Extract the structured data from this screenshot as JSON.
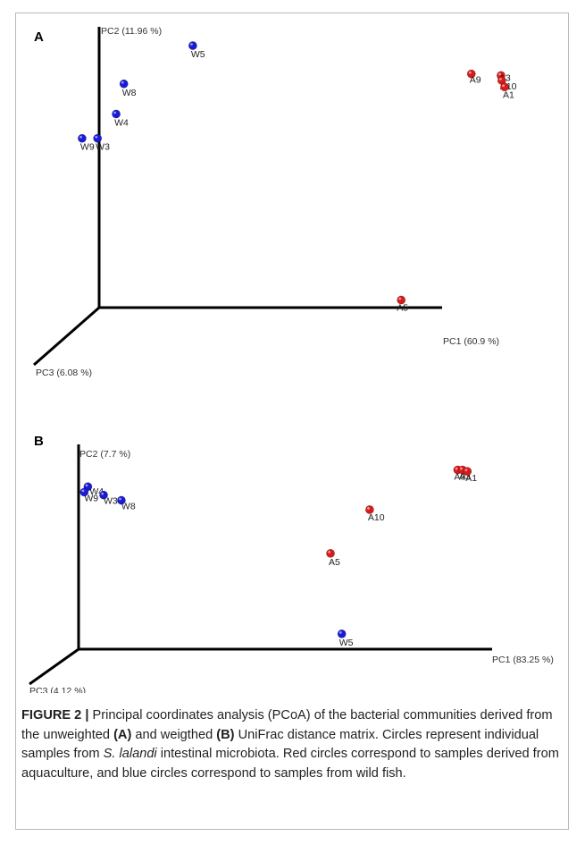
{
  "figure": {
    "caption_lead": "FIGURE 2 |",
    "caption_part1": " Principal coordinates analysis (PCoA) of the bacterial communities derived from the unweighted ",
    "caption_a": "(A)",
    "caption_part2": " and weigthed ",
    "caption_b": "(B)",
    "caption_part3": " UniFrac distance matrix. Circles represent individual samples from ",
    "caption_species": "S. lalandi",
    "caption_part4": " intestinal microbiota. Red circles correspond to samples derived from aquaculture, and blue circles correspond to samples from wild fish."
  },
  "colors": {
    "aquaculture": "#d91a1a",
    "wild": "#1a1ad9"
  },
  "chart_data": [
    {
      "type": "scatter",
      "panel": "A",
      "xlabel": "PC1 (60.9 %)",
      "ylabel": "PC2 (11.96 %)",
      "zlabel": "PC3 (6.08 %)",
      "xlim": [
        0,
        1
      ],
      "ylim": [
        0,
        1
      ],
      "series": [
        {
          "group": "aquaculture",
          "points": [
            {
              "label": "A9",
              "x": 0.918,
              "y": 0.892
            },
            {
              "label": "A3",
              "x": 0.991,
              "y": 0.886
            },
            {
              "label": "A10",
              "x": 0.993,
              "y": 0.867
            },
            {
              "label": "A1",
              "x": 1.0,
              "y": 0.842
            },
            {
              "label": "A5",
              "x": 0.745,
              "y": 0.029
            }
          ]
        },
        {
          "group": "wild",
          "points": [
            {
              "label": "W5",
              "x": 0.231,
              "y": 1.0
            },
            {
              "label": "W8",
              "x": 0.061,
              "y": 0.854
            },
            {
              "label": "W4",
              "x": 0.042,
              "y": 0.739
            },
            {
              "label": "W9",
              "x": -0.042,
              "y": 0.646
            },
            {
              "label": "W3",
              "x": -0.004,
              "y": 0.646
            }
          ]
        }
      ]
    },
    {
      "type": "scatter",
      "panel": "B",
      "xlabel": "PC1 (83.25 %)",
      "ylabel": "PC2 (7.7 %)",
      "zlabel": "PC3 (4.12 %)",
      "xlim": [
        0,
        1
      ],
      "ylim": [
        0,
        1
      ],
      "series": [
        {
          "group": "aquaculture",
          "points": [
            {
              "label": "A9",
              "x": 0.939,
              "y": 0.983
            },
            {
              "label": "A3",
              "x": 0.951,
              "y": 0.983
            },
            {
              "label": "A1",
              "x": 0.963,
              "y": 0.975
            },
            {
              "label": "A10",
              "x": 0.721,
              "y": 0.765
            },
            {
              "label": "A5",
              "x": 0.624,
              "y": 0.525
            }
          ]
        },
        {
          "group": "wild",
          "points": [
            {
              "label": "W4",
              "x": 0.023,
              "y": 0.891
            },
            {
              "label": "W9",
              "x": 0.014,
              "y": 0.861
            },
            {
              "label": "W3",
              "x": 0.062,
              "y": 0.845
            },
            {
              "label": "W8",
              "x": 0.106,
              "y": 0.816
            },
            {
              "label": "W5",
              "x": 0.652,
              "y": 0.084
            }
          ]
        }
      ]
    }
  ]
}
